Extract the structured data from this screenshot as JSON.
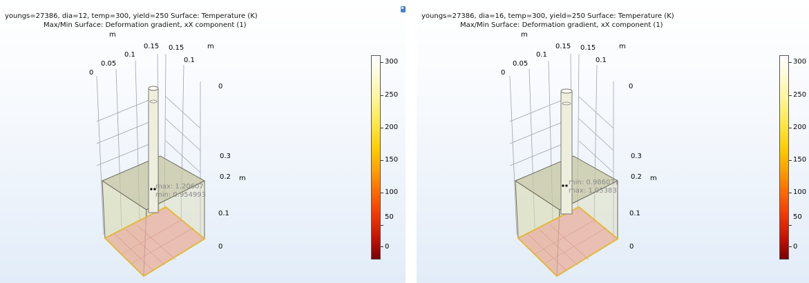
{
  "panels": [
    {
      "title1": "youngs=27386, dia=12, temp=300, yield=250   Surface: Temperature (K)",
      "title2": "Max/Min Surface: Deformation gradient, xX component (1)",
      "x_axis_ticks": [
        "0",
        "0.05",
        "0.1",
        "0.15",
        "0.15",
        "0.1",
        "0"
      ],
      "x_axis_unit": "m",
      "y_axis_unit": "m",
      "z_axis_ticks": [
        "0.3",
        "0.2",
        "0.1",
        "0"
      ],
      "z_axis_unit": "m",
      "annotation_top": "max: 1.20607",
      "annotation_bottom": "min: 0.954993",
      "colorbar_ticks": [
        "300",
        "250",
        "200",
        "150",
        "100",
        "50",
        "0"
      ]
    },
    {
      "title1": "youngs=27386, dia=16, temp=300, yield=250   Surface: Temperature (K)",
      "title2": "Max/Min Surface: Deformation gradient, xX component (1)",
      "x_axis_ticks": [
        "0",
        "0.05",
        "0.1",
        "0.15",
        "0.15",
        "0.1",
        "0"
      ],
      "x_axis_unit": "m",
      "y_axis_unit": "m",
      "z_axis_ticks": [
        "0.3",
        "0.2",
        "0.1",
        "0"
      ],
      "z_axis_unit": "m",
      "annotation_top": "min: 0.986071",
      "annotation_bottom": "max: 1.05383",
      "colorbar_ticks": [
        "300",
        "250",
        "200",
        "150",
        "100",
        "50",
        "0"
      ]
    }
  ],
  "icons": {
    "corner": "image-icon"
  },
  "colors": {
    "box_fill": "#c9c9a6",
    "floor": "#e8b3a8",
    "rod": "#eeeedd",
    "accent_edge": "#e8c23a"
  }
}
